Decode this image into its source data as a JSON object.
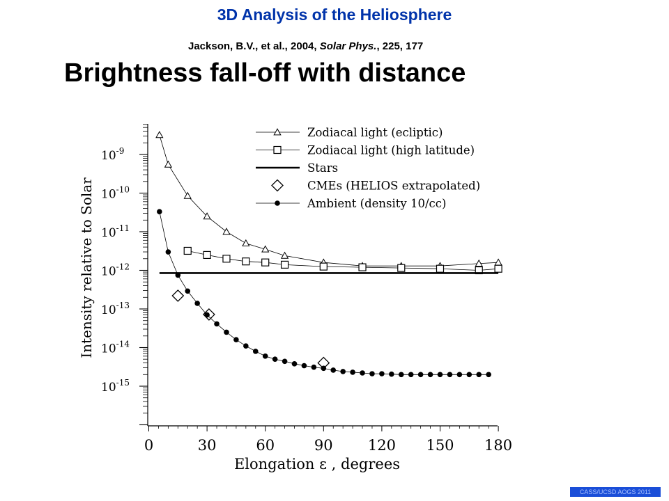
{
  "header": {
    "title": "3D Analysis of the Heliosphere",
    "citation_authors": "Jackson, B.V., et al., 2004, ",
    "citation_journal": "Solar Phys.",
    "citation_rest": ", 225, 177",
    "subtitle": "Brightness fall-off with distance"
  },
  "footer": {
    "label": "CASS/UCSD AOGS 2011"
  },
  "chart_data": {
    "type": "line",
    "xlabel": "Elongation ε , degrees",
    "ylabel": "Intensity relative to Solar",
    "xlim": [
      0,
      180
    ],
    "x_ticks": [
      0,
      30,
      60,
      90,
      120,
      150,
      180
    ],
    "y_scale": "log",
    "ylim": [
      1e-16,
      1e-08
    ],
    "y_tick_labels": [
      {
        "exp": -9,
        "base": "10",
        "power": "-9"
      },
      {
        "exp": -10,
        "base": "10",
        "power": "-10"
      },
      {
        "exp": -11,
        "base": "10",
        "power": "-11"
      },
      {
        "exp": -12,
        "base": "10",
        "power": "-12"
      },
      {
        "exp": -13,
        "base": "10",
        "power": "-13"
      },
      {
        "exp": -14,
        "base": "10",
        "power": "-14"
      },
      {
        "exp": -15,
        "base": "10",
        "power": "-15"
      }
    ],
    "legend_position": "top-right",
    "series": [
      {
        "name": "Zodiacal light (ecliptic)",
        "marker": "triangle",
        "x": [
          5.5,
          10,
          20,
          30,
          40,
          50,
          60,
          70,
          90,
          110,
          130,
          150,
          170,
          180
        ],
        "y": [
          3.2e-09,
          5.5e-10,
          8.5e-11,
          2.5e-11,
          1e-11,
          5e-12,
          3.5e-12,
          2.4e-12,
          1.6e-12,
          1.3e-12,
          1.3e-12,
          1.3e-12,
          1.5e-12,
          1.6e-12
        ]
      },
      {
        "name": "Zodiacal light (high latitude)",
        "marker": "square",
        "x": [
          20,
          30,
          40,
          50,
          60,
          70,
          90,
          110,
          130,
          150,
          170,
          180
        ],
        "y": [
          3.2e-12,
          2.5e-12,
          2e-12,
          1.7e-12,
          1.6e-12,
          1.4e-12,
          1.25e-12,
          1.2e-12,
          1.15e-12,
          1.1e-12,
          1e-12,
          1.1e-12
        ]
      },
      {
        "name": "Stars",
        "marker": "none",
        "x": [
          5.5,
          180
        ],
        "y": [
          8.5e-13,
          8.5e-13
        ]
      },
      {
        "name": "CMEs (HELIOS extrapolated)",
        "marker": "diamond",
        "x": [
          15,
          31,
          90
        ],
        "y": [
          2.2e-13,
          7.2e-14,
          4e-15
        ]
      },
      {
        "name": "Ambient (density 10/cc)",
        "marker": "dot",
        "x": [
          5.5,
          10,
          15,
          20,
          25,
          30,
          35,
          40,
          45,
          50,
          55,
          60,
          65,
          70,
          75,
          80,
          85,
          90,
          95,
          100,
          105,
          110,
          115,
          120,
          125,
          130,
          135,
          140,
          145,
          150,
          155,
          160,
          165,
          170,
          175
        ],
        "y": [
          3.3e-11,
          3e-12,
          7.5e-13,
          2.9e-13,
          1.4e-13,
          7e-14,
          4.1e-14,
          2.5e-14,
          1.6e-14,
          1.1e-14,
          8e-15,
          6e-15,
          5e-15,
          4.4e-15,
          3.8e-15,
          3.4e-15,
          3.1e-15,
          2.9e-15,
          2.6e-15,
          2.4e-15,
          2.3e-15,
          2.2e-15,
          2.1e-15,
          2.1e-15,
          2.05e-15,
          2e-15,
          2e-15,
          2e-15,
          2e-15,
          2e-15,
          2e-15,
          2e-15,
          2e-15,
          2e-15,
          2e-15
        ]
      }
    ]
  }
}
